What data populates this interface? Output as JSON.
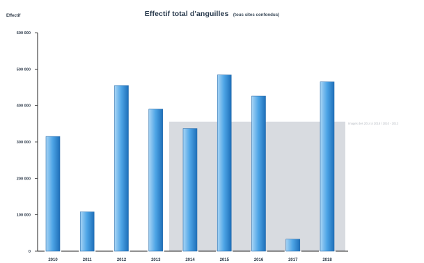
{
  "chart_data": {
    "type": "bar",
    "title": "Effectif total d'anguilles",
    "subtitle": "(tous sites confondus)",
    "xlabel": "",
    "ylabel": "Effectif",
    "categories": [
      "2010",
      "2011",
      "2012",
      "2013",
      "2014",
      "2015",
      "2016",
      "2017",
      "2018"
    ],
    "values": [
      315000,
      108000,
      455000,
      390000,
      337000,
      484000,
      426000,
      33000,
      465000
    ],
    "ylim": [
      0,
      600000
    ],
    "yticks": [
      "0",
      "100 000",
      "200 000",
      "300 000",
      "400 000",
      "500 000",
      "600 000"
    ],
    "ytick_values": [
      0,
      100000,
      200000,
      300000,
      400000,
      500000,
      600000
    ],
    "highlight_band": {
      "from_category": "2014",
      "to_category": "2018",
      "y_value": 350000,
      "label": "Images des 2014 à 2018 / 2010 - 2013",
      "color": "#d8dbe0"
    },
    "colors": {
      "bar_light": "#a9d5f5",
      "bar_mid": "#4ea5e6",
      "bar_dark": "#1e6fb9",
      "axis": "#222222",
      "text": "#2b3848"
    },
    "grid": false,
    "legend": "none"
  }
}
